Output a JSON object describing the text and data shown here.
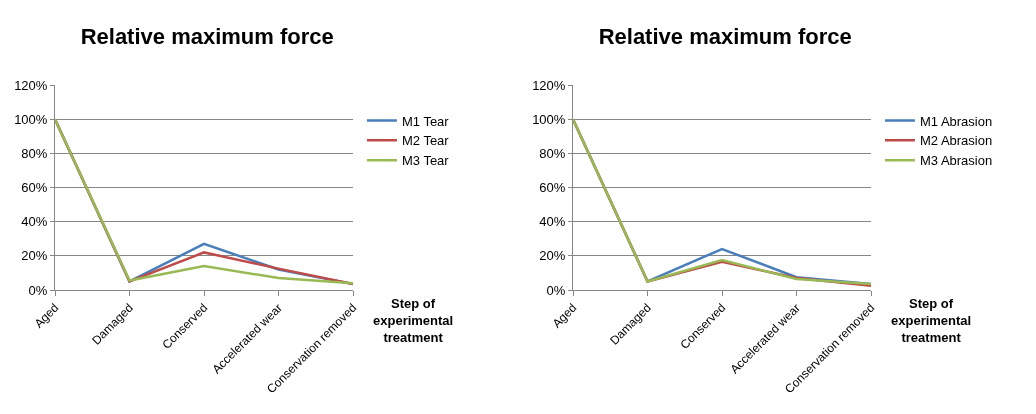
{
  "chart_data": [
    {
      "type": "line",
      "title": "Relative maximum force",
      "xlabel": "Step of experimental treatment",
      "categories": [
        "Aged",
        "Damaged",
        "Conserved",
        "Accelerated wear",
        "Conservation removed"
      ],
      "series": [
        {
          "name": "M1 Tear",
          "color": "#4a7ebb",
          "values": [
            100,
            5,
            27,
            12,
            3.5
          ]
        },
        {
          "name": "M2 Tear",
          "color": "#be4b48",
          "values": [
            100,
            5,
            22,
            12.5,
            3.5
          ]
        },
        {
          "name": "M3 Tear",
          "color": "#98b954",
          "values": [
            100,
            5.5,
            14,
            7,
            4
          ]
        }
      ],
      "ylim": [
        0,
        120
      ],
      "yticks": [
        {
          "value": 0,
          "label": "0%"
        },
        {
          "value": 20,
          "label": "20%"
        },
        {
          "value": 40,
          "label": "40%"
        },
        {
          "value": 60,
          "label": "60%"
        },
        {
          "value": 80,
          "label": "80%"
        },
        {
          "value": 100,
          "label": "100%"
        },
        {
          "value": 120,
          "label": "120%"
        }
      ],
      "grid": "y",
      "legend": "right",
      "marker": "none",
      "line_style": "solid"
    },
    {
      "type": "line",
      "title": "Relative maximum force",
      "xlabel": "Step of experimental treatment",
      "categories": [
        "Aged",
        "Damaged",
        "Conserved",
        "Accelerated wear",
        "Conservation removed"
      ],
      "series": [
        {
          "name": "M1 Abrasion",
          "color": "#4a7ebb",
          "values": [
            100,
            5,
            24,
            7.5,
            3.5
          ]
        },
        {
          "name": "M2 Abrasion",
          "color": "#be4b48",
          "values": [
            100,
            5,
            16.5,
            7,
            2.5
          ]
        },
        {
          "name": "M3 Abrasion",
          "color": "#98b954",
          "values": [
            100,
            5,
            17.5,
            6.5,
            3.5
          ]
        }
      ],
      "ylim": [
        0,
        120
      ],
      "yticks": [
        {
          "value": 0,
          "label": "0%"
        },
        {
          "value": 20,
          "label": "20%"
        },
        {
          "value": 40,
          "label": "40%"
        },
        {
          "value": 60,
          "label": "60%"
        },
        {
          "value": 80,
          "label": "80%"
        },
        {
          "value": 100,
          "label": "100%"
        },
        {
          "value": 120,
          "label": "120%"
        }
      ],
      "grid": "y",
      "legend": "right",
      "marker": "none",
      "line_style": "solid"
    }
  ]
}
